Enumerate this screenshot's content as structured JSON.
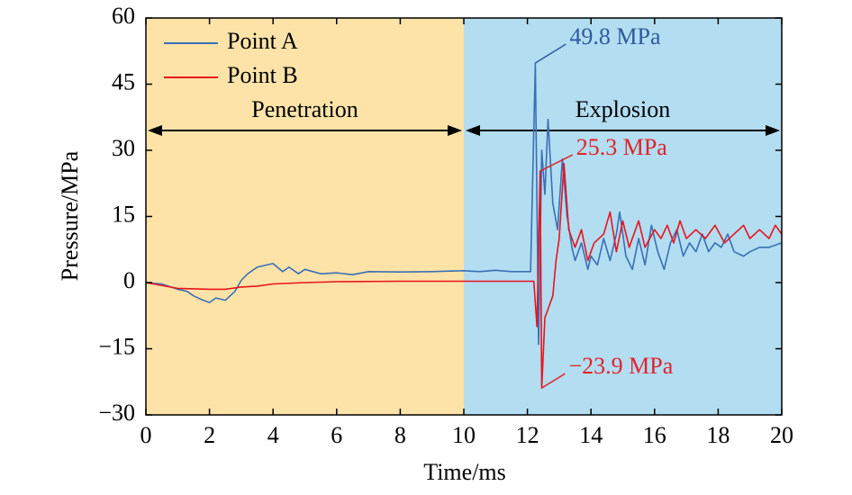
{
  "chart_data": {
    "type": "line",
    "xlabel": "Time/ms",
    "ylabel": "Pressure/MPa",
    "xlim": [
      0,
      20
    ],
    "ylim": [
      -30,
      60
    ],
    "xticks": [
      0,
      2,
      4,
      6,
      8,
      10,
      12,
      14,
      16,
      18,
      20
    ],
    "yticks": [
      {
        "value": -30,
        "label": "−30"
      },
      {
        "value": -15,
        "label": "−15"
      },
      0,
      15,
      30,
      45,
      60
    ],
    "legend": "upper left",
    "regions": [
      {
        "label": "Penetration",
        "range": [
          0,
          10
        ],
        "color": "#fde3a8"
      },
      {
        "label": "Explosion",
        "range": [
          10,
          20
        ],
        "color": "#b3ddf1"
      }
    ],
    "annotations": [
      {
        "text": "49.8 MPa",
        "x": 12.25,
        "y": 49.8,
        "color": "#2e5a9e"
      },
      {
        "text": "25.3 MPa",
        "x": 12.4,
        "y": 25.3,
        "color": "#e0242b"
      },
      {
        "text": "−23.9 MPa",
        "x": 12.45,
        "y": -23.9,
        "color": "#e0242b"
      }
    ],
    "series": [
      {
        "name": "Point A",
        "color": "#3a6fb5",
        "x": [
          0,
          0.5,
          1,
          1.3,
          1.5,
          1.8,
          2,
          2.2,
          2.5,
          2.8,
          3,
          3.2,
          3.5,
          3.8,
          4,
          4.3,
          4.5,
          4.8,
          5,
          5.5,
          6,
          6.5,
          7,
          8,
          9,
          10,
          10.5,
          11,
          11.5,
          12.1,
          12.25,
          12.35,
          12.45,
          12.55,
          12.65,
          12.8,
          12.95,
          13.1,
          13.25,
          13.4,
          13.5,
          13.7,
          13.9,
          14,
          14.2,
          14.4,
          14.6,
          14.8,
          14.9,
          15.1,
          15.3,
          15.5,
          15.7,
          15.9,
          16.1,
          16.3,
          16.5,
          16.7,
          16.9,
          17.1,
          17.3,
          17.5,
          17.7,
          17.9,
          18.1,
          18.3,
          18.5,
          18.8,
          19,
          19.3,
          19.6,
          20
        ],
        "values": [
          0,
          -0.3,
          -1.5,
          -2,
          -3,
          -4,
          -4.5,
          -3.5,
          -4,
          -2,
          0.5,
          2,
          3.5,
          4,
          4.3,
          2.5,
          3.5,
          2,
          3,
          2,
          2.2,
          1.8,
          2.5,
          2.4,
          2.5,
          2.7,
          2.5,
          2.8,
          2.5,
          2.5,
          49.8,
          -14,
          30,
          20,
          37,
          18,
          12,
          28,
          15,
          8,
          5,
          9,
          3,
          6,
          4,
          10,
          5,
          11,
          16,
          6,
          3,
          10,
          4,
          13,
          7,
          3,
          9,
          12,
          6,
          9,
          7,
          11,
          7,
          9,
          8,
          11,
          7,
          6,
          7,
          8,
          8,
          9
        ]
      },
      {
        "name": "Point B",
        "color": "#e8141c",
        "x": [
          0,
          1,
          2,
          2.5,
          3,
          3.5,
          4,
          5,
          6,
          8,
          10,
          12.2,
          12.3,
          12.4,
          12.45,
          12.55,
          12.7,
          12.8,
          12.9,
          13,
          13.15,
          13.3,
          13.5,
          13.7,
          13.9,
          14.1,
          14.4,
          14.6,
          14.8,
          15,
          15.2,
          15.5,
          15.7,
          16,
          16.2,
          16.4,
          16.6,
          16.8,
          17,
          17.3,
          17.6,
          17.9,
          18.2,
          18.5,
          18.8,
          19,
          19.3,
          19.6,
          19.8,
          20
        ],
        "values": [
          0,
          -1.3,
          -1.5,
          -1.5,
          -1,
          -0.8,
          -0.3,
          0,
          0.2,
          0.3,
          0.3,
          0.3,
          -10,
          25.3,
          -23.9,
          -8,
          -5,
          -3,
          5,
          10,
          27,
          12,
          8,
          12,
          5,
          9,
          11,
          16,
          7,
          14,
          8,
          14,
          8,
          12,
          10,
          13,
          9,
          14,
          10,
          12,
          10,
          13,
          9,
          11,
          13,
          10,
          12,
          10,
          13,
          11
        ]
      }
    ]
  }
}
